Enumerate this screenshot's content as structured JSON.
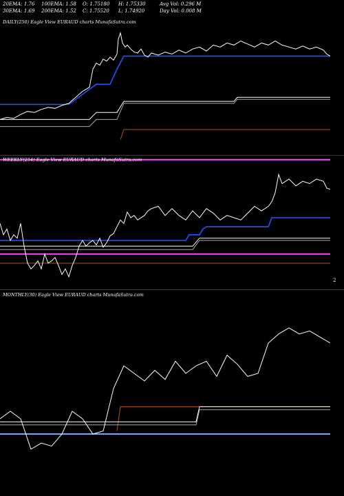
{
  "header": {
    "row1": {
      "ema20": "20EMA: 1.76",
      "ema100": "100EMA: 1.58",
      "open": "O: 1.75180",
      "high": "H: 1.75330",
      "avg_vol": "Avg Vol: 0.296  M"
    },
    "row2": {
      "ema30": "30EMA: 1.69",
      "ema200": "200EMA: 1.52",
      "close": "C: 1.75520",
      "low": "L: 1.74920",
      "day_vol": "Day Vol: 0.008  M"
    }
  },
  "chart_data": [
    {
      "type": "line",
      "panel": "daily",
      "title": "DAILY(250) Eagle   View  EURAUD charts MunafaSutra.com",
      "right_tick": "",
      "ylim": [
        0,
        100
      ],
      "colors": {
        "price": "#ffffff",
        "ema_fast": "#2255ff",
        "ema_mid1": "#ffffff",
        "ema_mid2": "#aaaaaa",
        "ema_slow": "#b0520f",
        "volume_base": "#ff44ff"
      },
      "price": [
        [
          0,
          10
        ],
        [
          10,
          12
        ],
        [
          20,
          11
        ],
        [
          30,
          15
        ],
        [
          40,
          18
        ],
        [
          50,
          17
        ],
        [
          60,
          20
        ],
        [
          70,
          22
        ],
        [
          80,
          21
        ],
        [
          90,
          24
        ],
        [
          100,
          26
        ],
        [
          110,
          32
        ],
        [
          120,
          38
        ],
        [
          130,
          42
        ],
        [
          135,
          60
        ],
        [
          140,
          66
        ],
        [
          145,
          64
        ],
        [
          150,
          70
        ],
        [
          155,
          68
        ],
        [
          160,
          72
        ],
        [
          165,
          69
        ],
        [
          170,
          75
        ],
        [
          172,
          90
        ],
        [
          175,
          96
        ],
        [
          178,
          86
        ],
        [
          182,
          82
        ],
        [
          185,
          84
        ],
        [
          190,
          80
        ],
        [
          195,
          77
        ],
        [
          200,
          76
        ],
        [
          205,
          80
        ],
        [
          210,
          74
        ],
        [
          215,
          72
        ],
        [
          220,
          76
        ],
        [
          230,
          74
        ],
        [
          240,
          77
        ],
        [
          250,
          75
        ],
        [
          260,
          79
        ],
        [
          270,
          76
        ],
        [
          280,
          80
        ],
        [
          290,
          82
        ],
        [
          300,
          78
        ],
        [
          310,
          84
        ],
        [
          320,
          82
        ],
        [
          330,
          86
        ],
        [
          340,
          84
        ],
        [
          350,
          88
        ],
        [
          360,
          85
        ],
        [
          370,
          82
        ],
        [
          380,
          86
        ],
        [
          390,
          84
        ],
        [
          400,
          88
        ],
        [
          410,
          84
        ],
        [
          420,
          82
        ],
        [
          430,
          80
        ],
        [
          440,
          83
        ],
        [
          450,
          80
        ],
        [
          460,
          82
        ],
        [
          470,
          79
        ],
        [
          475,
          75
        ],
        [
          480,
          73
        ]
      ],
      "ema_fast": [
        [
          0,
          25
        ],
        [
          100,
          25
        ],
        [
          120,
          35
        ],
        [
          140,
          45
        ],
        [
          160,
          45
        ],
        [
          170,
          60
        ],
        [
          180,
          73
        ],
        [
          480,
          73
        ]
      ],
      "ema_mid1": [
        [
          0,
          10
        ],
        [
          130,
          10
        ],
        [
          140,
          17
        ],
        [
          170,
          17
        ],
        [
          180,
          28
        ],
        [
          340,
          28
        ],
        [
          345,
          32
        ],
        [
          480,
          32
        ]
      ],
      "ema_mid2": [
        [
          0,
          3
        ],
        [
          130,
          3
        ],
        [
          140,
          10
        ],
        [
          170,
          10
        ],
        [
          180,
          26
        ],
        [
          340,
          26
        ],
        [
          345,
          30
        ],
        [
          480,
          30
        ]
      ],
      "ema_slow": [
        [
          175,
          -10
        ],
        [
          180,
          0
        ],
        [
          480,
          0
        ]
      ],
      "volume_base": [
        [
          0,
          -30
        ],
        [
          480,
          -30
        ]
      ]
    },
    {
      "type": "line",
      "panel": "weekly",
      "title": "WEEKLY(254) Eagle   View  EURAUD charts MunafaSutra.com",
      "right_tick": "2",
      "ylim": [
        0,
        100
      ],
      "colors": {
        "price": "#ffffff",
        "ema_fast": "#2255ff",
        "ema_mid1": "#ffffff",
        "ema_mid2": "#aaaaaa",
        "ema_slow": "#b0520f",
        "volume_base": "#ff44ff"
      },
      "price": [
        [
          0,
          55
        ],
        [
          5,
          45
        ],
        [
          10,
          50
        ],
        [
          15,
          40
        ],
        [
          20,
          45
        ],
        [
          25,
          42
        ],
        [
          30,
          55
        ],
        [
          35,
          35
        ],
        [
          40,
          20
        ],
        [
          45,
          15
        ],
        [
          50,
          18
        ],
        [
          55,
          22
        ],
        [
          60,
          15
        ],
        [
          65,
          28
        ],
        [
          70,
          20
        ],
        [
          75,
          22
        ],
        [
          80,
          25
        ],
        [
          85,
          18
        ],
        [
          90,
          10
        ],
        [
          95,
          15
        ],
        [
          100,
          8
        ],
        [
          105,
          18
        ],
        [
          110,
          25
        ],
        [
          115,
          35
        ],
        [
          120,
          40
        ],
        [
          125,
          35
        ],
        [
          130,
          38
        ],
        [
          135,
          40
        ],
        [
          140,
          36
        ],
        [
          145,
          42
        ],
        [
          150,
          34
        ],
        [
          155,
          38
        ],
        [
          160,
          44
        ],
        [
          165,
          46
        ],
        [
          170,
          52
        ],
        [
          175,
          58
        ],
        [
          180,
          55
        ],
        [
          185,
          65
        ],
        [
          190,
          60
        ],
        [
          195,
          62
        ],
        [
          200,
          58
        ],
        [
          210,
          62
        ],
        [
          215,
          66
        ],
        [
          220,
          68
        ],
        [
          230,
          70
        ],
        [
          240,
          62
        ],
        [
          250,
          68
        ],
        [
          260,
          62
        ],
        [
          270,
          58
        ],
        [
          280,
          66
        ],
        [
          290,
          60
        ],
        [
          300,
          68
        ],
        [
          310,
          64
        ],
        [
          320,
          58
        ],
        [
          330,
          62
        ],
        [
          340,
          60
        ],
        [
          350,
          58
        ],
        [
          360,
          64
        ],
        [
          370,
          70
        ],
        [
          380,
          66
        ],
        [
          390,
          70
        ],
        [
          395,
          74
        ],
        [
          400,
          82
        ],
        [
          405,
          98
        ],
        [
          410,
          90
        ],
        [
          420,
          94
        ],
        [
          430,
          88
        ],
        [
          440,
          92
        ],
        [
          450,
          90
        ],
        [
          460,
          94
        ],
        [
          470,
          92
        ],
        [
          475,
          86
        ],
        [
          480,
          85
        ]
      ],
      "ema_fast": [
        [
          0,
          40
        ],
        [
          270,
          40
        ],
        [
          275,
          45
        ],
        [
          290,
          45
        ],
        [
          295,
          50
        ],
        [
          300,
          52
        ],
        [
          390,
          52
        ],
        [
          395,
          60
        ],
        [
          480,
          60
        ]
      ],
      "ema_mid1": [
        [
          0,
          35
        ],
        [
          280,
          35
        ],
        [
          290,
          42
        ],
        [
          480,
          42
        ]
      ],
      "ema_mid2": [
        [
          0,
          32
        ],
        [
          280,
          32
        ],
        [
          290,
          40
        ],
        [
          480,
          40
        ]
      ],
      "ema_slow": [
        [
          0,
          20
        ],
        [
          480,
          20
        ]
      ],
      "volume_base": [
        [
          0,
          28
        ],
        [
          480,
          28
        ]
      ]
    },
    {
      "type": "line",
      "panel": "monthly",
      "title": "MONTHLY(30) Eagle   View  EURAUD charts MunafaSutra.com",
      "right_tick": "",
      "ylim": [
        0,
        100
      ],
      "colors": {
        "price": "#ffffff",
        "ema_fast": "#ffffff",
        "ema_mid2": "#aaaaaa",
        "ema_slow": "#b0520f",
        "ema_base": "#66aaff"
      },
      "price": [
        [
          0,
          40
        ],
        [
          15,
          45
        ],
        [
          30,
          40
        ],
        [
          45,
          20
        ],
        [
          60,
          24
        ],
        [
          75,
          22
        ],
        [
          90,
          30
        ],
        [
          105,
          45
        ],
        [
          120,
          40
        ],
        [
          135,
          30
        ],
        [
          150,
          32
        ],
        [
          165,
          60
        ],
        [
          180,
          75
        ],
        [
          195,
          70
        ],
        [
          210,
          65
        ],
        [
          225,
          72
        ],
        [
          240,
          66
        ],
        [
          255,
          78
        ],
        [
          270,
          70
        ],
        [
          285,
          75
        ],
        [
          300,
          78
        ],
        [
          315,
          68
        ],
        [
          330,
          82
        ],
        [
          345,
          76
        ],
        [
          360,
          68
        ],
        [
          375,
          70
        ],
        [
          390,
          90
        ],
        [
          405,
          96
        ],
        [
          420,
          100
        ],
        [
          435,
          96
        ],
        [
          450,
          98
        ],
        [
          465,
          94
        ],
        [
          480,
          90
        ]
      ],
      "ema_fast": [
        [
          0,
          38
        ],
        [
          285,
          38
        ],
        [
          290,
          48
        ],
        [
          480,
          48
        ]
      ],
      "ema_mid2": [
        [
          0,
          36
        ],
        [
          285,
          36
        ],
        [
          290,
          46
        ],
        [
          480,
          46
        ]
      ],
      "ema_slow": [
        [
          170,
          32
        ],
        [
          175,
          48
        ],
        [
          480,
          48
        ]
      ],
      "ema_base": [
        [
          0,
          30
        ],
        [
          480,
          30
        ]
      ]
    }
  ]
}
